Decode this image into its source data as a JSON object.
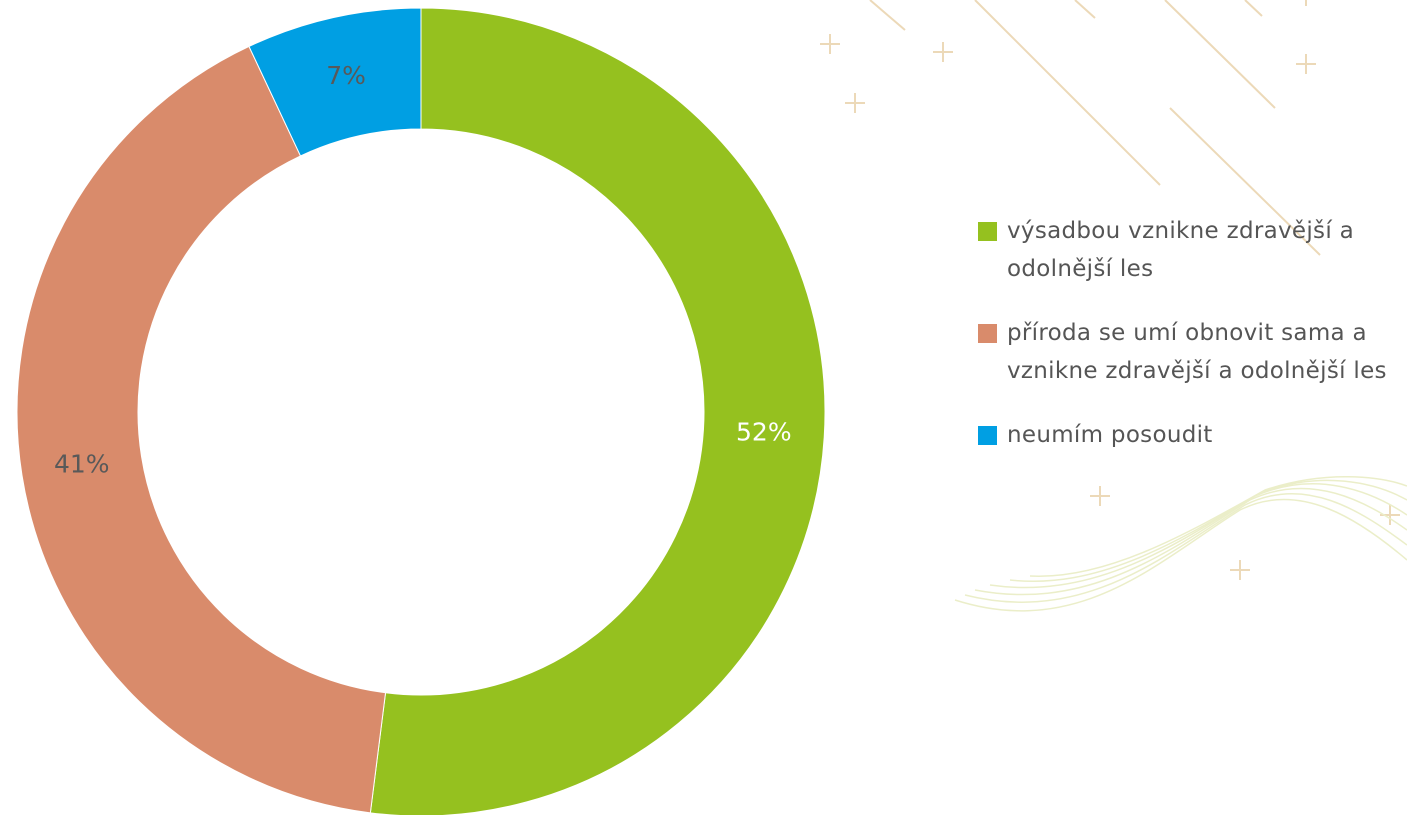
{
  "chart_data": {
    "type": "donut",
    "categories": [
      "výsadbou vznikne zdravější a odolnější les",
      "příroda se umí obnovit sama a vznikne zdravější a odolnější les",
      "neumím posoudit"
    ],
    "values": [
      52,
      41,
      7
    ],
    "value_labels": [
      "52%",
      "41%",
      "7%"
    ],
    "colors": [
      "#95c11f",
      "#d98b6b",
      "#009fe3"
    ],
    "legend": "right"
  }
}
